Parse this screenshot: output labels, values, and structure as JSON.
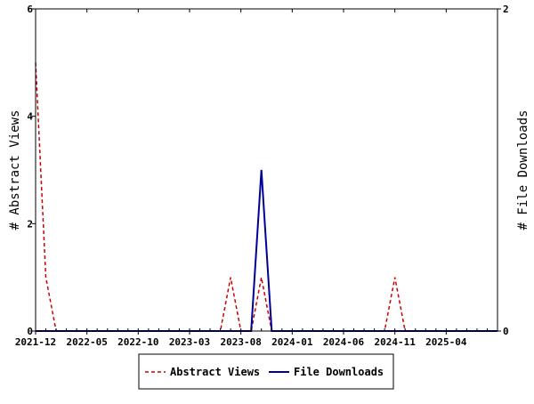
{
  "chart_data": {
    "type": "line",
    "ylabel_left": "# Abstract Views",
    "ylabel_right": "# File Downloads",
    "ylim_left": [
      0,
      6
    ],
    "ylim_right": [
      0,
      2
    ],
    "yticks_left": [
      "0",
      "2",
      "4",
      "6"
    ],
    "yticks_right": [
      "0",
      "2"
    ],
    "x_range": [
      "2021-12-01",
      "2025-09-01"
    ],
    "x_ticks": [
      "2021-12",
      "2022-05",
      "2022-10",
      "2023-03",
      "2023-08",
      "2024-01",
      "2024-06",
      "2024-11",
      "2025-04"
    ],
    "grid": false,
    "legend_position": "bottom",
    "series": [
      {
        "name": "Abstract Views",
        "axis": "left",
        "color": "#cc0000",
        "dash": "dashed",
        "x": [
          "2021-12-01",
          "2022-01-01",
          "2022-02-01",
          "2022-03-01",
          "2023-06-01",
          "2023-07-01",
          "2023-08-01",
          "2023-09-01",
          "2023-10-01",
          "2023-11-01",
          "2023-12-01",
          "2024-10-01",
          "2024-11-01",
          "2024-12-01",
          "2025-09-01"
        ],
        "values": [
          5,
          1,
          0,
          0,
          0,
          1,
          0,
          0,
          1,
          0,
          0,
          0,
          1,
          0,
          0
        ]
      },
      {
        "name": "File Downloads",
        "axis": "right",
        "color": "#000099",
        "dash": "solid",
        "x": [
          "2021-12-01",
          "2023-09-01",
          "2023-10-01",
          "2023-11-01",
          "2025-09-01"
        ],
        "values": [
          0,
          0,
          1,
          0,
          0
        ]
      }
    ]
  }
}
